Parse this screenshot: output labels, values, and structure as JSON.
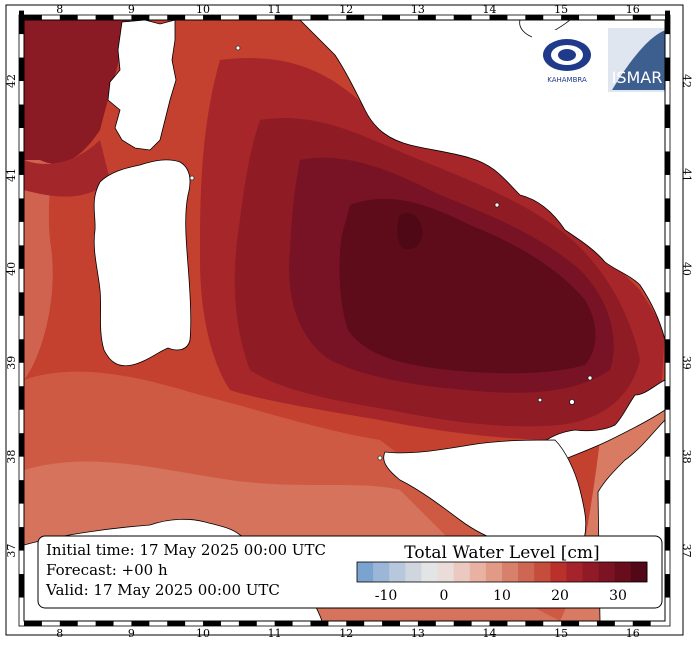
{
  "map": {
    "x_ticks": [
      "8",
      "9",
      "10",
      "11",
      "12",
      "13",
      "14",
      "15",
      "16"
    ],
    "y_ticks": [
      "37",
      "38",
      "39",
      "40",
      "41",
      "42"
    ],
    "lon_range": [
      7.5,
      16.45
    ],
    "lat_range": [
      36.25,
      42.65
    ]
  },
  "info": {
    "initial_time": "Initial time: 17 May 2025 00:00 UTC",
    "forecast": "Forecast: +00 h",
    "valid": "Valid: 17 May 2025 00:00 UTC"
  },
  "legend": {
    "title": "Total Water Level [cm]",
    "tick_labels": [
      "-10",
      "0",
      "10",
      "20",
      "30"
    ],
    "tick_values": [
      -10,
      0,
      10,
      20,
      30
    ],
    "range": [
      -15,
      35
    ],
    "colors": [
      "#7ba3cf",
      "#9bb6d6",
      "#b7c8dc",
      "#cfd6de",
      "#e3e4e6",
      "#eadcd9",
      "#ecc9c0",
      "#e8b1a1",
      "#e09a86",
      "#d7806b",
      "#cd6653",
      "#c44d3b",
      "#b9312a",
      "#a5232a",
      "#911a27",
      "#7c1322",
      "#670d1c",
      "#520816"
    ]
  },
  "logos": {
    "left": "KAHAMBRA",
    "right": "ISMAR"
  },
  "colors": {
    "sea_low": "#d5775f",
    "sea_mid": "#c4402f",
    "sea_high": "#8f1b25",
    "sea_peak": "#5e0b1a"
  }
}
